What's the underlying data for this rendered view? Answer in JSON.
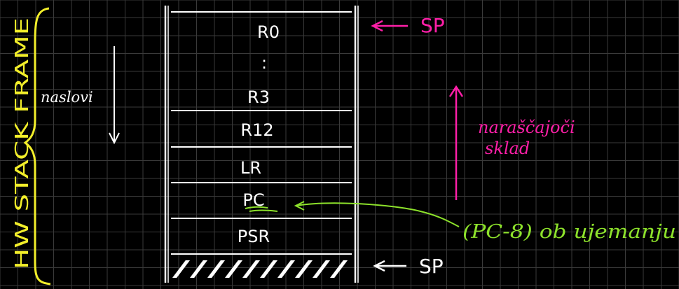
{
  "colors": {
    "background": "#000000",
    "grid": "#3a3a3a",
    "ink": "#ffffff",
    "magenta": "#ff1fa8",
    "yellow": "#f2ee2a",
    "green": "#8de22b"
  },
  "stack": {
    "cells": [
      "R0",
      ":",
      "R3",
      "R12",
      "LR",
      "PC",
      "PSR"
    ],
    "hatch_cell": "//////////"
  },
  "labels": {
    "sp_top": "SP",
    "sp_bottom": "SP",
    "hw_stack_frame": "HW STACK FRAME",
    "naslovi": "naslovi",
    "growing_line1": "naraščajoči",
    "growing_line2": "sklad",
    "pc_note": "(PC-8) ob ujemanju"
  }
}
